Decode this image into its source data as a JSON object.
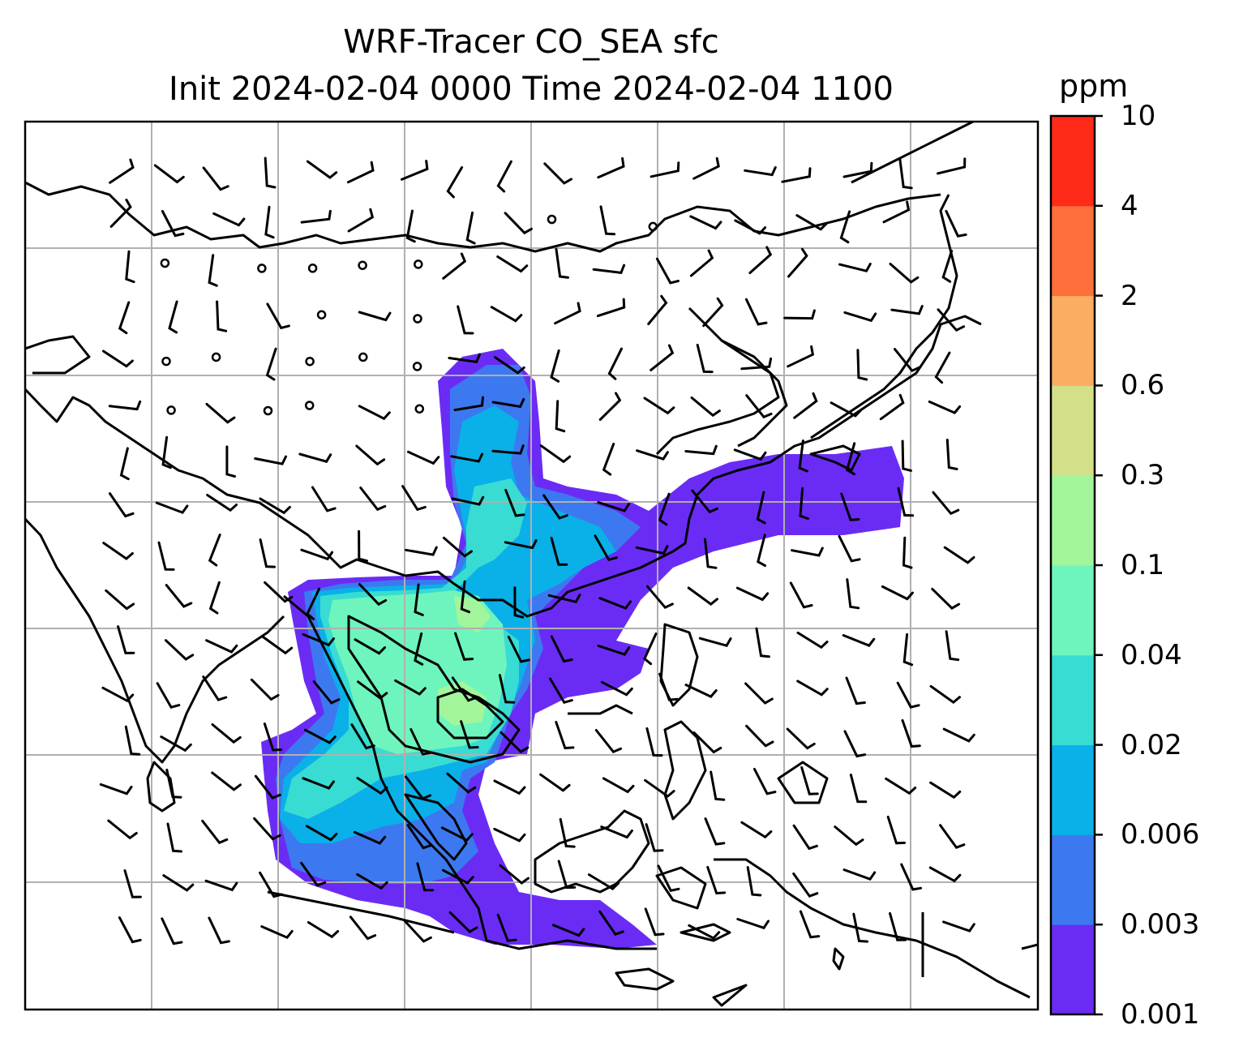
{
  "title": {
    "line1": "WRF-Tracer CO_SEA sfc",
    "line2": "Init 2024-02-04 0000 Time 2024-02-04 1100"
  },
  "colorbar": {
    "unit": "ppm",
    "levels": [
      "0.001",
      "0.003",
      "0.006",
      "0.02",
      "0.04",
      "0.1",
      "0.3",
      "0.6",
      "2",
      "4",
      "10"
    ],
    "colors": [
      "#6a2cf5",
      "#3c79f0",
      "#0ab0e8",
      "#38dcd2",
      "#6df5bd",
      "#a3f59b",
      "#d4e089",
      "#fbad62",
      "#fd703b",
      "#ff2a18"
    ]
  },
  "map": {
    "variable": "CO_SEA tracer surface concentration",
    "overlay": "wind barbs",
    "gridlines": true
  }
}
